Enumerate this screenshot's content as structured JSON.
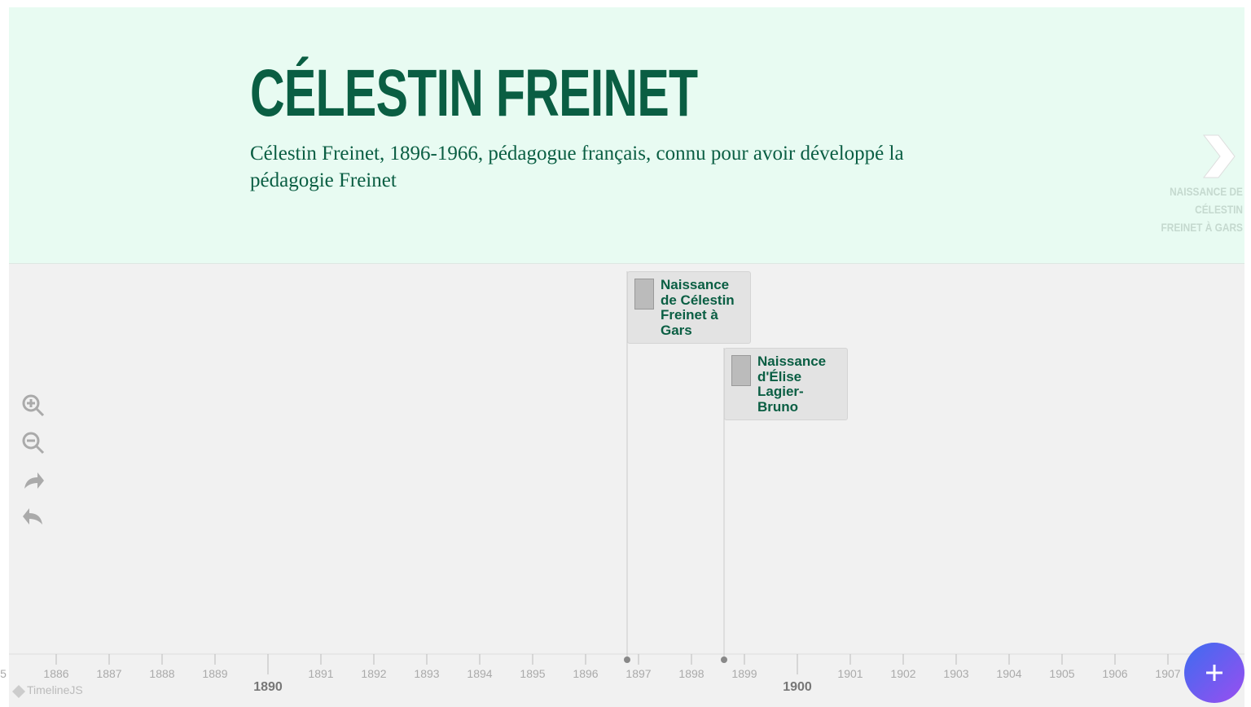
{
  "header": {
    "title": "CÉLESTIN FREINET",
    "text": "Célestin Freinet, 1896-1966, pédagogue français, connu pour avoir développé la pédagogie Freinet",
    "next_label": "NAISSANCE DE CÉLESTIN FREINET À GARS"
  },
  "events": [
    {
      "label": "Naissance de Célestin Freinet à Gars"
    },
    {
      "label": "Naissance d'Élise Lagier-Bruno"
    }
  ],
  "axis": {
    "minor_labels": [
      "5",
      "1886",
      "1887",
      "1888",
      "1889",
      "1891",
      "1892",
      "1893",
      "1894",
      "1895",
      "1896",
      "1897",
      "1898",
      "1899",
      "1901",
      "1902",
      "1903",
      "1904",
      "1905",
      "1906",
      "1907"
    ],
    "major_labels": [
      "1890",
      "1900"
    ]
  },
  "branding": "TimelineJS"
}
